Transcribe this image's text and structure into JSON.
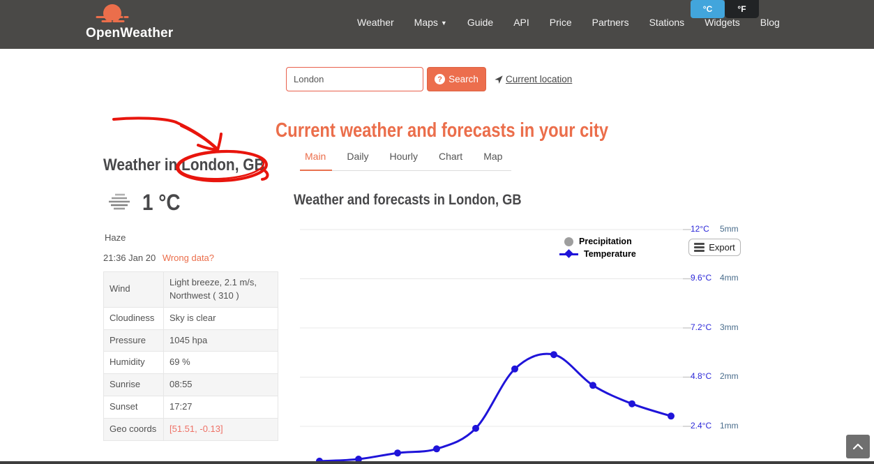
{
  "brand": {
    "accent": "#eb6e4b",
    "header_bg": "#4a4947",
    "toggle_blue": "#42a5dc",
    "annotation_red": "#e8150d"
  },
  "header": {
    "logo_text": "OpenWeather",
    "nav": [
      {
        "label": "Weather"
      },
      {
        "label": "Maps",
        "has_dropdown": true
      },
      {
        "label": "Guide"
      },
      {
        "label": "API"
      },
      {
        "label": "Price"
      },
      {
        "label": "Partners"
      },
      {
        "label": "Stations"
      },
      {
        "label": "Widgets"
      },
      {
        "label": "Blog"
      }
    ],
    "units": {
      "celsius": "°C",
      "fahrenheit": "°F",
      "active": "°C"
    }
  },
  "search": {
    "value": "London",
    "button_label": "Search",
    "button_icon": "?",
    "current_location_label": "Current location"
  },
  "left_panel": {
    "title_prefix": "Weather in ",
    "city": "London, GB",
    "temperature": "1 °C",
    "condition": "Haze",
    "timestamp": "21:36 Jan 20",
    "wrong_data_label": "Wrong data?",
    "details": [
      {
        "label": "Wind",
        "value": "Light breeze, 2.1 m/s, Northwest ( 310 )"
      },
      {
        "label": "Cloudiness",
        "value": "Sky is clear"
      },
      {
        "label": "Pressure",
        "value": "1045 hpa"
      },
      {
        "label": "Humidity",
        "value": "69 %"
      },
      {
        "label": "Sunrise",
        "value": "08:55"
      },
      {
        "label": "Sunset",
        "value": "17:27"
      },
      {
        "label": "Geo coords",
        "value": "[51.51, -0.13]"
      }
    ]
  },
  "main": {
    "page_title": "Current weather and forecasts in your city",
    "tabs": [
      {
        "label": "Main",
        "active": true
      },
      {
        "label": "Daily",
        "active": false
      },
      {
        "label": "Hourly",
        "active": false
      },
      {
        "label": "Chart",
        "active": false
      },
      {
        "label": "Map",
        "active": false
      }
    ],
    "section_title": "Weather and forecasts in London, GB",
    "export_label": "Export"
  },
  "chart_data": {
    "type": "line",
    "title": "Weather and forecasts in London, GB",
    "legend": [
      {
        "name": "Precipitation",
        "marker": "gray-dot",
        "color": "#9e9e9e"
      },
      {
        "name": "Temperature",
        "marker": "blue-line-diamond",
        "color": "#1f14d9"
      }
    ],
    "legend_position": "top-right",
    "grid": "horizontal",
    "series": [
      {
        "name": "Temperature",
        "color": "#1f14d9",
        "unit": "°C",
        "values": [
          0.7,
          0.8,
          1.1,
          1.3,
          2.3,
          5.2,
          5.9,
          4.4,
          3.5,
          2.9
        ]
      },
      {
        "name": "Precipitation",
        "color": "#9e9e9e",
        "unit": "mm",
        "values": []
      }
    ],
    "y_axis_right_temp": {
      "tick_labels": [
        "12°C",
        "9.6°C",
        "7.2°C",
        "4.8°C",
        "2.4°C"
      ],
      "tick_values": [
        12,
        9.6,
        7.2,
        4.8,
        2.4
      ],
      "color": "#2b27d8"
    },
    "y_axis_right_precip": {
      "tick_labels": [
        "5mm",
        "4mm",
        "3mm",
        "2mm",
        "1mm"
      ],
      "tick_values": [
        5,
        4,
        3,
        2,
        1
      ],
      "color": "#4a6d8c"
    },
    "temp_axis_range_shown": [
      2.4,
      12
    ],
    "x_axis": {
      "labels_visible": false
    }
  },
  "scroll_top_icon": "chevron-up"
}
